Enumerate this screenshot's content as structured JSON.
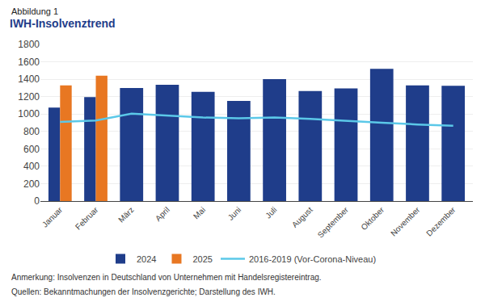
{
  "chart_data": {
    "type": "bar",
    "title": "IWH-Insolvenztrend",
    "annotations": [
      "Abbildung 1",
      "Anmerkung: Insolvenzen in Deutschland von Unternehmen mit Handelsregistereintrag.",
      "Quellen: Bekanntmachungen der Insolvenzgerichte; Darstellung des IWH."
    ],
    "categories": [
      "Januar",
      "Februar",
      "März",
      "April",
      "Mai",
      "Juni",
      "Juli",
      "August",
      "September",
      "Oktober",
      "November",
      "Dezember"
    ],
    "series": [
      {
        "name": "2024",
        "type": "bar",
        "color": "#1f3d8a",
        "values": [
          1075,
          1195,
          1300,
          1335,
          1255,
          1150,
          1400,
          1265,
          1295,
          1520,
          1330,
          1325
        ]
      },
      {
        "name": "2025",
        "type": "bar",
        "color": "#e87722",
        "values": [
          1330,
          1440,
          null,
          null,
          null,
          null,
          null,
          null,
          null,
          null,
          null,
          null
        ]
      },
      {
        "name": "2016-2019 (Vor-Corona-Niveau)",
        "type": "line",
        "color": "#5bc8e8",
        "values": [
          910,
          925,
          1005,
          985,
          960,
          950,
          960,
          945,
          920,
          900,
          880,
          865
        ]
      }
    ],
    "ylim": [
      0,
      1800
    ],
    "yticks": [
      0,
      200,
      400,
      600,
      800,
      1000,
      1200,
      1400,
      1600,
      1800
    ],
    "grid": true,
    "legend": "bottom"
  }
}
